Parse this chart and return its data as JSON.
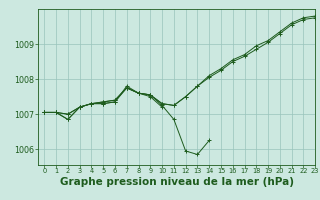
{
  "background_color": "#cce8e0",
  "plot_bg_color": "#cce8e0",
  "line_color": "#1e5c1e",
  "grid_color": "#99c4bc",
  "marker": "+",
  "xlabel": "Graphe pression niveau de la mer (hPa)",
  "xlabel_fontsize": 7.5,
  "xlim": [
    -0.5,
    23
  ],
  "ylim": [
    1005.55,
    1010.0
  ],
  "yticks": [
    1006,
    1007,
    1008,
    1009
  ],
  "xticks": [
    0,
    1,
    2,
    3,
    4,
    5,
    6,
    7,
    8,
    9,
    10,
    11,
    12,
    13,
    14,
    15,
    16,
    17,
    18,
    19,
    20,
    21,
    22,
    23
  ],
  "series": [
    {
      "x": [
        0,
        1,
        2,
        3,
        4,
        5,
        6,
        7,
        8,
        9,
        10,
        11,
        12,
        13,
        14
      ],
      "y": [
        1007.05,
        1007.05,
        1006.85,
        1007.2,
        1007.3,
        1007.3,
        1007.35,
        1007.8,
        1007.6,
        1007.55,
        1007.25,
        1006.85,
        1005.95,
        1005.85,
        1006.25
      ]
    },
    {
      "x": [
        0,
        1,
        2,
        3,
        4,
        5,
        6,
        7,
        8,
        9,
        10
      ],
      "y": [
        1007.05,
        1007.05,
        1006.85,
        1007.2,
        1007.3,
        1007.3,
        1007.35,
        1007.75,
        1007.6,
        1007.5,
        1007.2
      ]
    },
    {
      "x": [
        0,
        1,
        2,
        3,
        4,
        5,
        6,
        7,
        8,
        9,
        10,
        11,
        12,
        13,
        14,
        15,
        16,
        17,
        18,
        19,
        20,
        21,
        22,
        23
      ],
      "y": [
        1007.05,
        1007.05,
        1007.0,
        1007.2,
        1007.3,
        1007.35,
        1007.4,
        1007.75,
        1007.6,
        1007.55,
        1007.3,
        1007.25,
        1007.5,
        1007.8,
        1008.05,
        1008.25,
        1008.5,
        1008.65,
        1008.85,
        1009.05,
        1009.3,
        1009.55,
        1009.7,
        1009.75
      ]
    },
    {
      "x": [
        0,
        1,
        2,
        3,
        4,
        5,
        6,
        7,
        8,
        9,
        10,
        11,
        12,
        13,
        14,
        15,
        16,
        17,
        18,
        19,
        20,
        21,
        22,
        23
      ],
      "y": [
        1007.05,
        1007.05,
        1007.0,
        1007.2,
        1007.3,
        1007.35,
        1007.4,
        1007.75,
        1007.6,
        1007.55,
        1007.3,
        1007.25,
        1007.5,
        1007.8,
        1008.1,
        1008.3,
        1008.55,
        1008.7,
        1008.95,
        1009.1,
        1009.35,
        1009.6,
        1009.75,
        1009.8
      ]
    }
  ]
}
